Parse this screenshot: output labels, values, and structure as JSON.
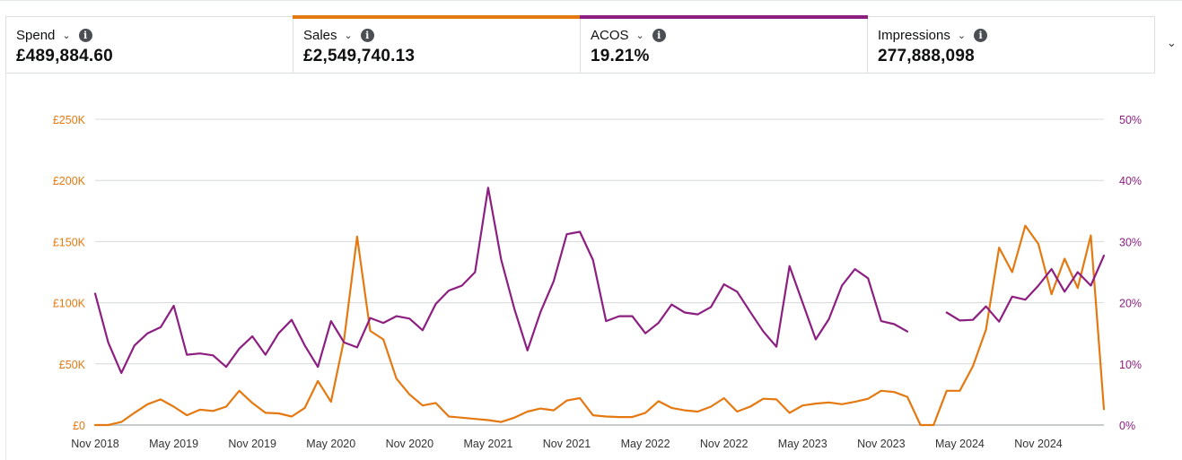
{
  "metrics": [
    {
      "label": "Spend",
      "value": "£489,884.60",
      "accent": null
    },
    {
      "label": "Sales",
      "value": "£2,549,740.13",
      "accent": "#e47911"
    },
    {
      "label": "ACOS",
      "value": "19.21%",
      "accent": "#8c1f80"
    },
    {
      "label": "Impressions",
      "value": "277,888,098",
      "accent": null
    }
  ],
  "icons": {
    "info": "info-icon",
    "metric_dropdown": "chevron-down-icon",
    "expand": "chevron-down-icon"
  },
  "colors": {
    "sales": "#e47911",
    "acos": "#8c1f80",
    "grid": "#d5d9d9"
  },
  "chart_data": {
    "type": "line",
    "x_ticks": [
      "Nov 2018",
      "May 2019",
      "Nov 2019",
      "May 2020",
      "Nov 2020",
      "May 2021",
      "Nov 2021",
      "May 2022",
      "Nov 2022",
      "May 2023",
      "Nov 2023",
      "May 2024",
      "Nov 2024"
    ],
    "y_left_ticks": [
      "£0",
      "£50K",
      "£100K",
      "£150K",
      "£200K",
      "£250K"
    ],
    "y_right_ticks": [
      "0%",
      "10%",
      "20%",
      "30%",
      "40%",
      "50%"
    ],
    "y_left_range": [
      0,
      250000
    ],
    "y_right_range": [
      0,
      50
    ],
    "grid": true,
    "legend": "none",
    "series": [
      {
        "name": "Sales",
        "axis": "left",
        "color": "#e47911",
        "values": [
          0,
          0,
          2500,
          10000,
          17000,
          21000,
          15000,
          8000,
          12500,
          11500,
          15000,
          28000,
          18000,
          10000,
          9500,
          7000,
          14000,
          36000,
          19000,
          70000,
          154000,
          77000,
          70000,
          38000,
          25000,
          16000,
          18000,
          7000,
          6000,
          5000,
          4000,
          2500,
          6000,
          11000,
          13500,
          12000,
          20000,
          22000,
          8000,
          7000,
          6500,
          6500,
          10000,
          19500,
          14000,
          12000,
          11000,
          15000,
          22000,
          11000,
          15000,
          21500,
          21000,
          10000,
          16000,
          17500,
          18500,
          17000,
          19000,
          21500,
          28000,
          27000,
          23000,
          0,
          0,
          28000,
          28000,
          48000,
          78000,
          145000,
          125000,
          163000,
          148000,
          107000,
          136000,
          112000,
          155000,
          13000
        ]
      },
      {
        "name": "ACOS",
        "axis": "right",
        "color": "#8c1f80",
        "values": [
          21.5,
          13.5,
          8.5,
          13,
          15,
          16,
          19.5,
          11.5,
          11.7,
          11.4,
          9.5,
          12.5,
          14.5,
          11.5,
          15,
          17.2,
          13,
          9.5,
          17,
          13.5,
          12.7,
          17.5,
          16.7,
          17.8,
          17.4,
          15.5,
          19.8,
          22,
          22.8,
          25,
          38.8,
          27,
          19,
          12.2,
          18.5,
          23.5,
          31.2,
          31.6,
          27,
          17,
          17.8,
          17.8,
          15,
          16.7,
          19.7,
          18.4,
          18.1,
          19.3,
          23,
          21.8,
          18.5,
          15.3,
          12.8,
          26,
          20,
          14,
          17.3,
          22.8,
          25.5,
          24,
          17,
          16.5,
          15.3,
          null,
          null,
          18.4,
          17.1,
          17.2,
          19.4,
          16.9,
          21,
          20.5,
          22.8,
          25.5,
          21.8,
          25,
          22.8,
          27.7
        ]
      }
    ]
  }
}
